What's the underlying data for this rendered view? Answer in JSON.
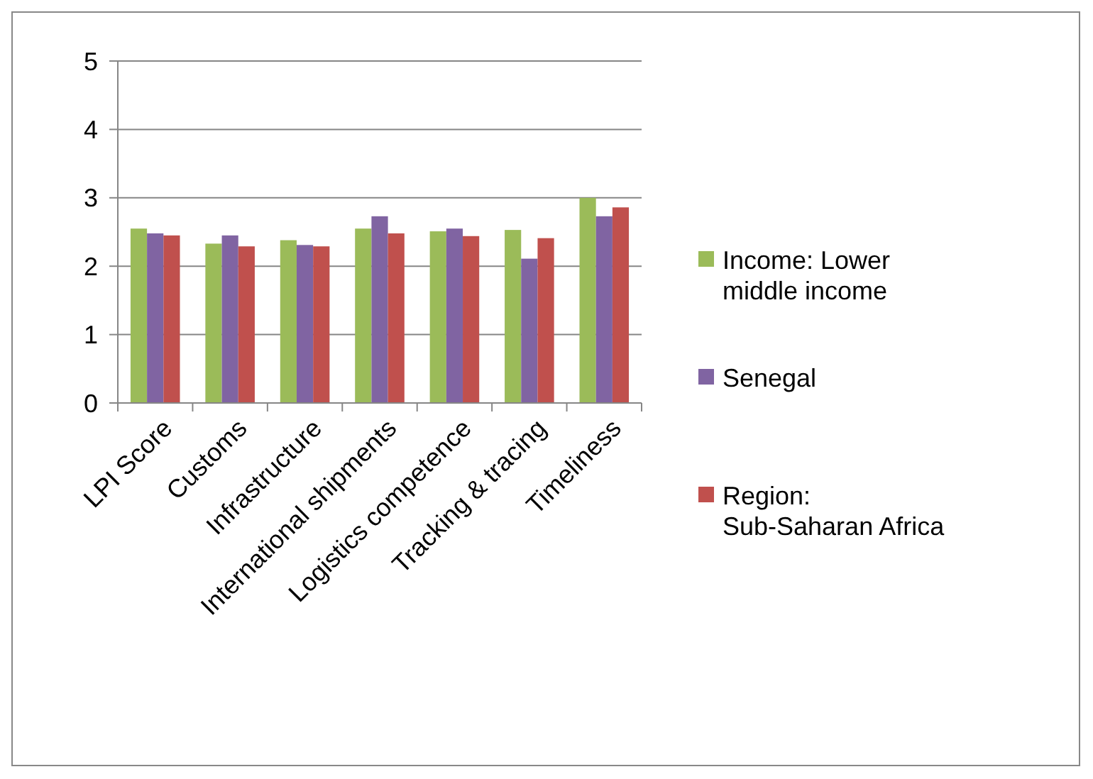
{
  "chart_data": {
    "type": "bar",
    "categories": [
      "LPI Score",
      "Customs",
      "Infrastructure",
      "International shipments",
      "Logistics competence",
      "Tracking & tracing",
      "Timeliness"
    ],
    "series": [
      {
        "name": "Income: Lower middle income",
        "color": "#9bbb59",
        "values": [
          2.55,
          2.33,
          2.38,
          2.55,
          2.51,
          2.53,
          3.0
        ]
      },
      {
        "name": "Senegal",
        "color": "#8064a2",
        "values": [
          2.48,
          2.45,
          2.31,
          2.73,
          2.55,
          2.11,
          2.73
        ]
      },
      {
        "name": "Region: Sub-Saharan Africa",
        "color": "#c0504d",
        "values": [
          2.45,
          2.29,
          2.29,
          2.48,
          2.44,
          2.41,
          2.86
        ]
      }
    ],
    "ylim": [
      0,
      5
    ],
    "yticks": [
      0,
      1,
      2,
      3,
      4,
      5
    ],
    "grid": "y",
    "legend": "right"
  }
}
